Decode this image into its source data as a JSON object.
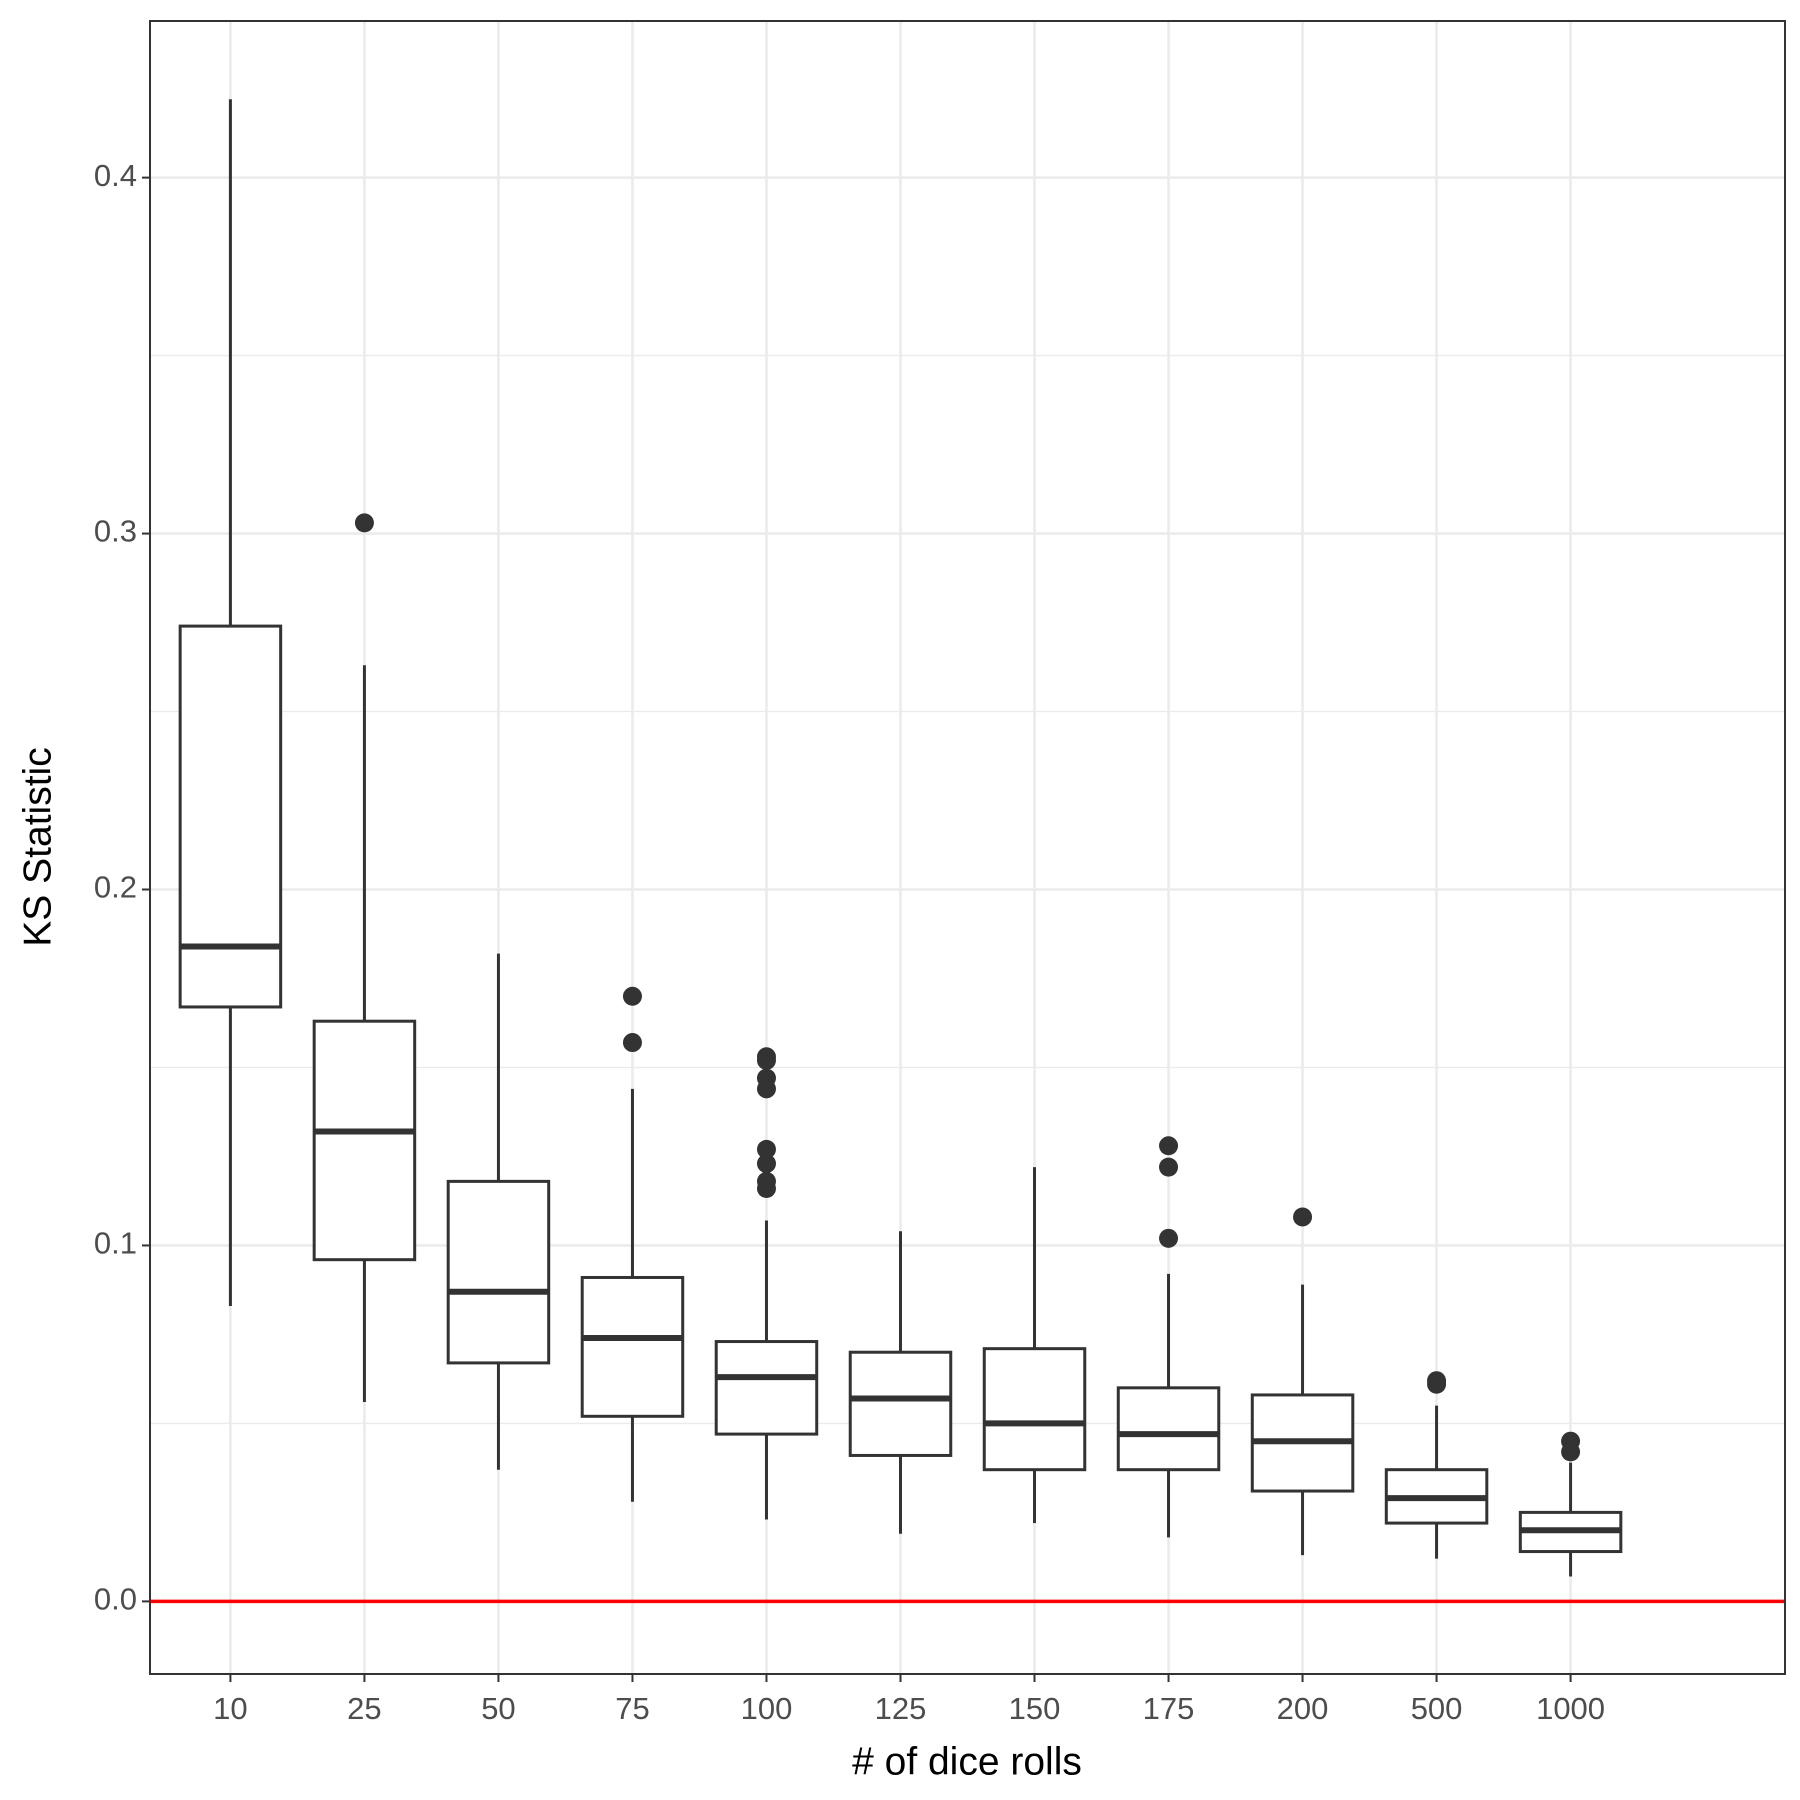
{
  "chart_data": {
    "type": "boxplot",
    "x_label": "# of dice rolls",
    "y_label": "KS Statistic",
    "categories": [
      "10",
      "25",
      "50",
      "75",
      "100",
      "125",
      "150",
      "175",
      "200",
      "500",
      "1000"
    ],
    "boxes": [
      {
        "whisker_low": 0.083,
        "q1": 0.167,
        "median": 0.184,
        "q3": 0.274,
        "whisker_high": 0.422,
        "outliers": []
      },
      {
        "whisker_low": 0.056,
        "q1": 0.096,
        "median": 0.132,
        "q3": 0.163,
        "whisker_high": 0.263,
        "outliers": [
          0.303
        ]
      },
      {
        "whisker_low": 0.037,
        "q1": 0.067,
        "median": 0.087,
        "q3": 0.118,
        "whisker_high": 0.182,
        "outliers": []
      },
      {
        "whisker_low": 0.028,
        "q1": 0.052,
        "median": 0.074,
        "q3": 0.091,
        "whisker_high": 0.144,
        "outliers": [
          0.17,
          0.157
        ]
      },
      {
        "whisker_low": 0.023,
        "q1": 0.047,
        "median": 0.063,
        "q3": 0.073,
        "whisker_high": 0.107,
        "outliers": [
          0.153,
          0.152,
          0.147,
          0.144,
          0.127,
          0.123,
          0.118,
          0.116
        ]
      },
      {
        "whisker_low": 0.019,
        "q1": 0.041,
        "median": 0.057,
        "q3": 0.07,
        "whisker_high": 0.104,
        "outliers": []
      },
      {
        "whisker_low": 0.022,
        "q1": 0.037,
        "median": 0.05,
        "q3": 0.071,
        "whisker_high": 0.122,
        "outliers": []
      },
      {
        "whisker_low": 0.018,
        "q1": 0.037,
        "median": 0.047,
        "q3": 0.06,
        "whisker_high": 0.092,
        "outliers": [
          0.128,
          0.122,
          0.102
        ]
      },
      {
        "whisker_low": 0.013,
        "q1": 0.031,
        "median": 0.045,
        "q3": 0.058,
        "whisker_high": 0.089,
        "outliers": [
          0.108
        ]
      },
      {
        "whisker_low": 0.012,
        "q1": 0.022,
        "median": 0.029,
        "q3": 0.037,
        "whisker_high": 0.055,
        "outliers": [
          0.062,
          0.061
        ]
      },
      {
        "whisker_low": 0.007,
        "q1": 0.014,
        "median": 0.02,
        "q3": 0.025,
        "whisker_high": 0.039,
        "outliers": [
          0.045,
          0.042
        ]
      }
    ],
    "box_color": "#333333",
    "ylim": [
      -0.0204,
      0.444
    ],
    "yticks": [
      {
        "value": 0,
        "label": "0.0"
      },
      0.1,
      0.2,
      0.3,
      0.4
    ],
    "y_minor_grid": [
      0.05,
      0.15,
      0.25,
      0.35
    ],
    "grid": true,
    "hline": {
      "value": 0,
      "color": "#ff0000"
    }
  }
}
